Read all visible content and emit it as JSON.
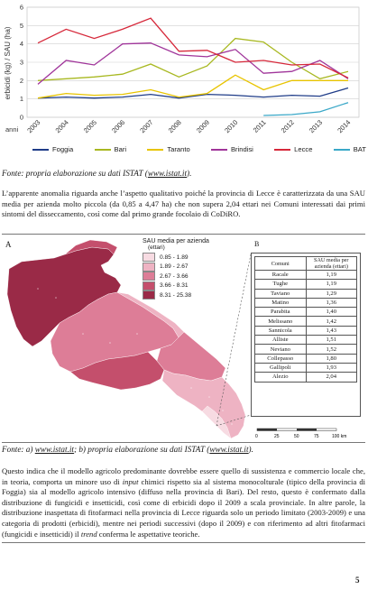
{
  "chart": {
    "type": "line",
    "ylabel": "erbicidi (kg) / SAU (ha)",
    "xaxis_prefix": "anni",
    "x": [
      "2003",
      "2004",
      "2005",
      "2006",
      "2007",
      "2008",
      "2009",
      "2010",
      "2011",
      "2012",
      "2013",
      "2014"
    ],
    "ylim": [
      0,
      6
    ],
    "yticks": [
      "0",
      "1",
      "2",
      "3",
      "4",
      "5",
      "6"
    ],
    "colors": {
      "Foggia": "#1f3c88",
      "Bari": "#a8b820",
      "Taranto": "#e8c400",
      "Brindisi": "#a0359a",
      "Lecce": "#d6283a",
      "BAT": "#3aa8c8"
    },
    "series": [
      {
        "name": "Foggia",
        "values": [
          1.05,
          1.1,
          1.05,
          1.1,
          1.25,
          1.05,
          1.25,
          1.2,
          1.1,
          1.2,
          1.15,
          1.6
        ]
      },
      {
        "name": "Bari",
        "values": [
          2.0,
          2.1,
          2.2,
          2.35,
          2.9,
          2.2,
          2.8,
          4.3,
          4.1,
          3.0,
          2.1,
          2.5
        ]
      },
      {
        "name": "Taranto",
        "values": [
          1.05,
          1.3,
          1.2,
          1.25,
          1.5,
          1.1,
          1.3,
          2.3,
          1.5,
          2.0,
          2.0,
          2.0
        ]
      },
      {
        "name": "Brindisi",
        "values": [
          1.8,
          3.1,
          2.85,
          4.0,
          4.05,
          3.4,
          3.3,
          3.7,
          2.4,
          2.5,
          3.1,
          2.1
        ]
      },
      {
        "name": "Lecce",
        "values": [
          4.05,
          4.8,
          4.3,
          4.8,
          5.4,
          3.6,
          3.65,
          3.0,
          3.1,
          2.85,
          2.9,
          2.15
        ]
      },
      {
        "name": "BAT",
        "values": [
          null,
          null,
          null,
          null,
          null,
          null,
          null,
          null,
          0.1,
          0.15,
          0.3,
          0.8
        ]
      }
    ]
  },
  "caption1": {
    "prefix": "Fonte: propria elaborazione su dati ISTAT (",
    "link": "www.istat.it",
    "suffix": ")."
  },
  "paragraph1": "L’apparente anomalia riguarda anche l’aspetto qualitativo poiché la provincia di Lecce è caratterizzata da una SAU media per azienda molto piccola (da 0,85 a 4,47 ha) che non supera 2,04 ettari nei Comuni interessati dai primi sintomi del disseccamento, così come dal primo grande focolaio di CoDiRO.",
  "map": {
    "label_a": "A",
    "label_b": "B",
    "legend_title": "SAU media per azienda",
    "legend_unit": "(ettari)",
    "legend_classes": [
      {
        "range": "0.85 - 1.89",
        "color": "#f7dbe2"
      },
      {
        "range": "1.89 - 2.67",
        "color": "#eeb3c3"
      },
      {
        "range": "2.67 - 3.66",
        "color": "#dd7d97"
      },
      {
        "range": "3.66 - 8.31",
        "color": "#c44f6c"
      },
      {
        "range": "8.31 - 25.38",
        "color": "#9a2a47"
      }
    ],
    "scale_labels": [
      "0",
      "25",
      "50",
      "75",
      "100 km"
    ]
  },
  "table": {
    "headers": [
      "Comuni",
      "SAU media per azienda (ettari)"
    ],
    "rows": [
      [
        "Racale",
        "1,19"
      ],
      [
        "Tughe",
        "1,19"
      ],
      [
        "Taviano",
        "1,29"
      ],
      [
        "Matino",
        "1,36"
      ],
      [
        "Parabita",
        "1,40"
      ],
      [
        "Melissano",
        "1,42"
      ],
      [
        "Sannicola",
        "1,43"
      ],
      [
        "Alliste",
        "1,51"
      ],
      [
        "Neviano",
        "1,52"
      ],
      [
        "Collepasso",
        "1,80"
      ],
      [
        "Gallipoli",
        "1,93"
      ],
      [
        "Alezio",
        "2,04"
      ]
    ]
  },
  "caption2": {
    "p1": "Fonte: a) ",
    "link1": "www.istat.it",
    "p2": "; b) propria elaborazione su dati ISTAT (",
    "link2": "www.istat.it",
    "p3": ")."
  },
  "paragraph2": {
    "t1": "Questo indica che il modello agricolo predominante dovrebbe essere quello di sussistenza e commercio locale che, in teoria, comporta un minore uso di ",
    "i1": "input",
    "t2": " chimici rispetto sia al sistema monocolturale (tipico della provincia di Foggia) sia al modello agricolo intensivo (diffuso nella provincia di Bari). Del resto, questo è confermato dalla distribuzione di fungicidi e insetticidi, così come di erbicidi dopo il 2009 a scala provinciale. In altre parole, la distribuzione inaspettata di fitofarmaci nella provincia di Lecce riguarda solo un periodo limitato (2003-2009) e una categoria di prodotti (erbicidi), mentre nei periodi successivi (dopo il 2009) e con riferimento ad altri fitofarmaci (fungicidi e insetticidi) il ",
    "i2": "trend",
    "t3": " conferma le aspettative teoriche."
  },
  "page_number": "5"
}
